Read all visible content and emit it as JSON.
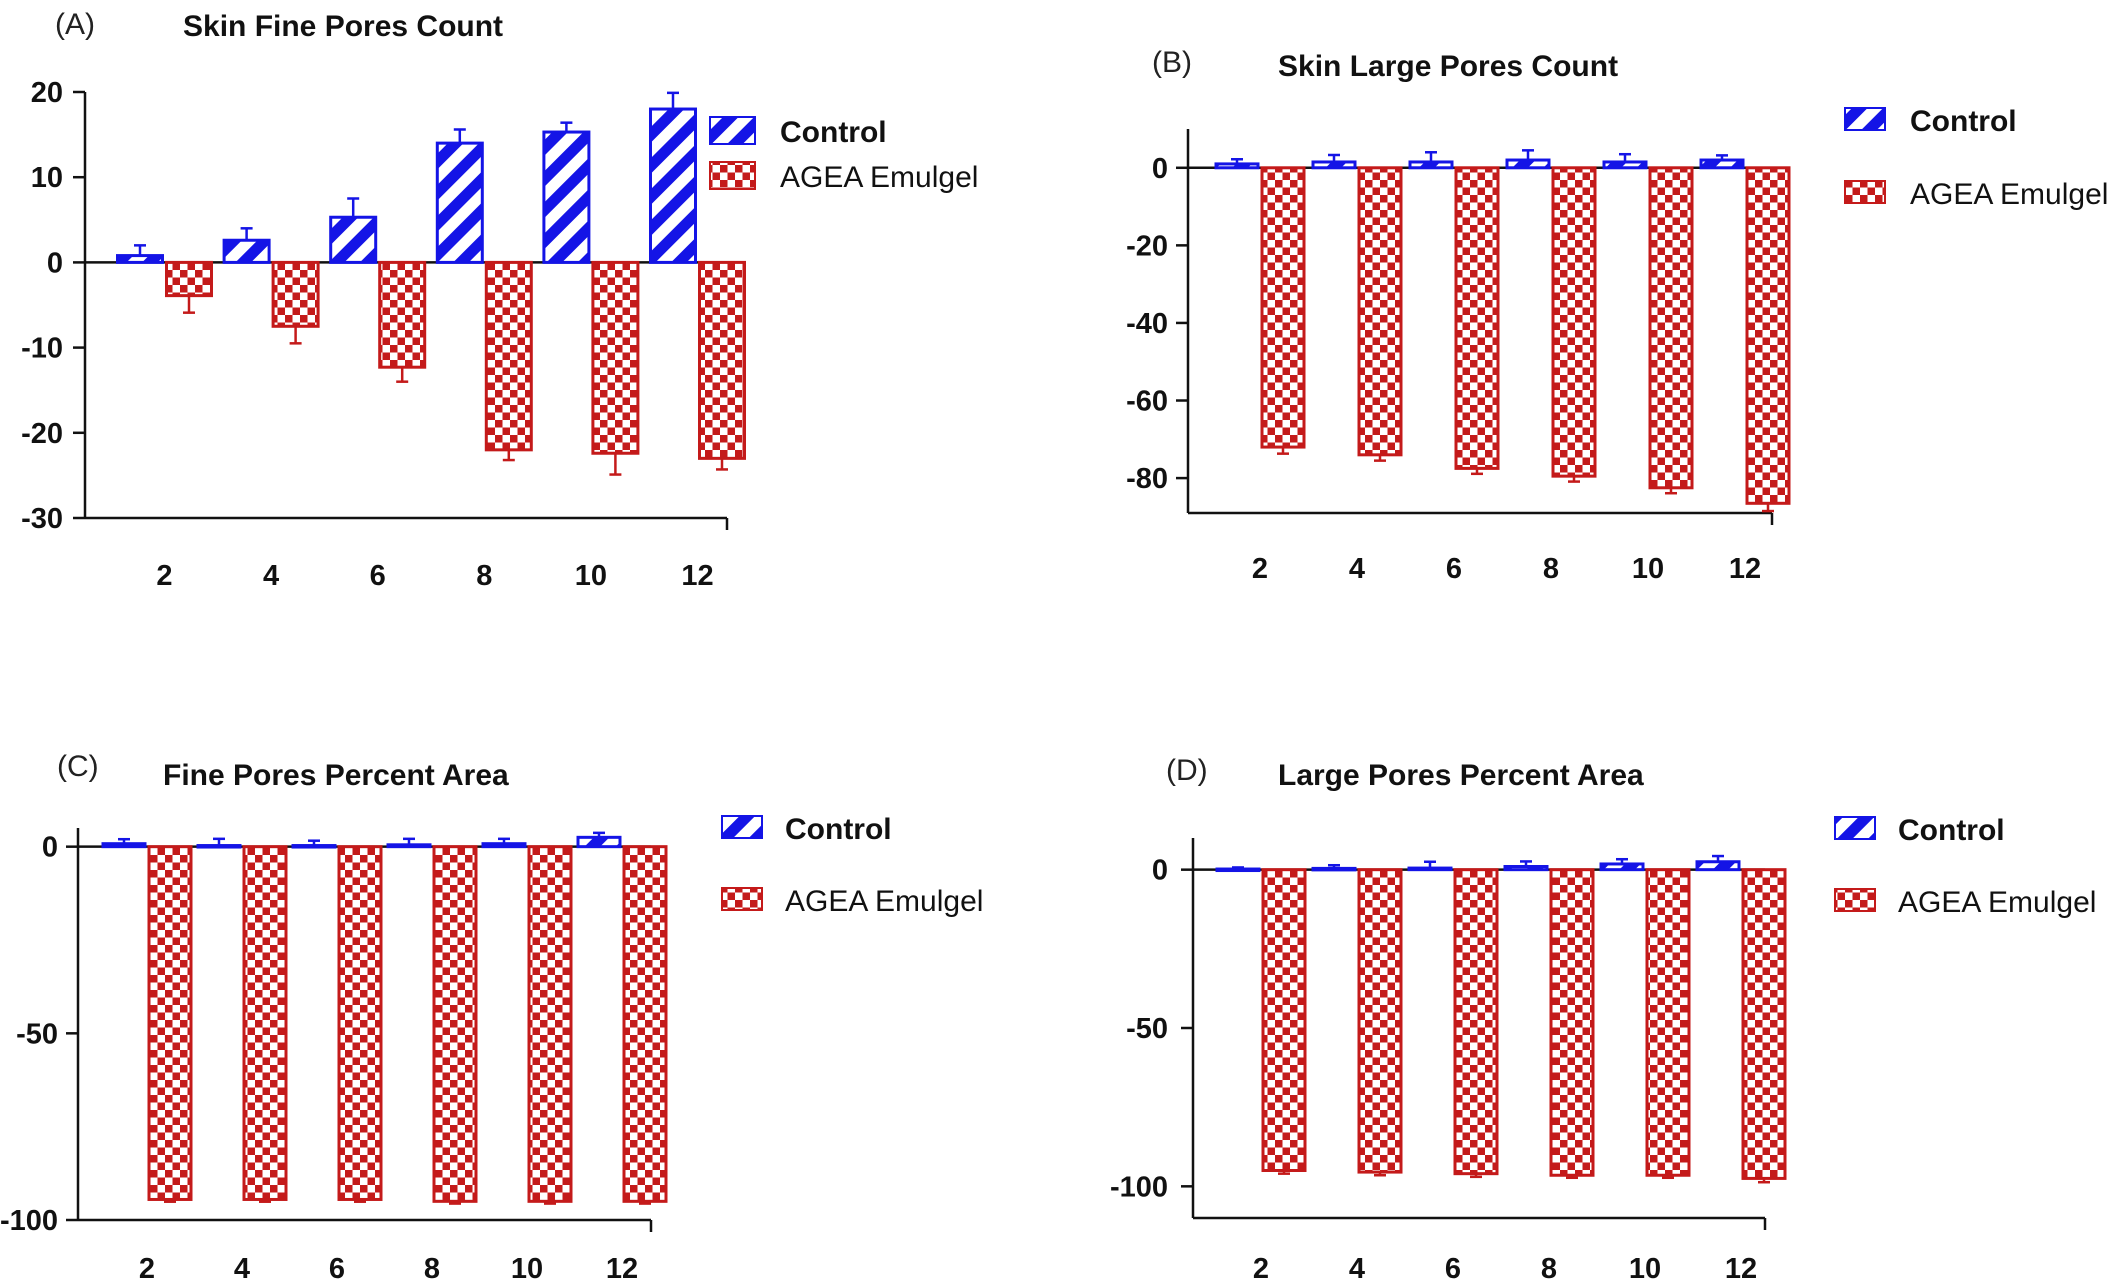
{
  "colors": {
    "control": "#1414e6",
    "agea": "#c41a1a",
    "axis": "#111111"
  },
  "legend": {
    "control": "Control",
    "agea": "AGEA Emulgel"
  },
  "chart_data": [
    {
      "panel_label": "(A)",
      "type": "bar",
      "title": "Skin Fine Pores Count",
      "xlabel": "",
      "ylabel": "",
      "categories": [
        "2",
        "4",
        "6",
        "8",
        "10",
        "12"
      ],
      "ylim": [
        -30,
        20
      ],
      "yticks": [
        20,
        10,
        0,
        -10,
        -20,
        -30
      ],
      "ytick_labels": [
        "20",
        "10",
        "0",
        "-10",
        "-20",
        "-30"
      ],
      "grid": false,
      "legend_position": "top-right",
      "series": [
        {
          "name": "Control",
          "values": [
            0.8,
            2.6,
            5.3,
            14,
            15.3,
            18
          ],
          "errors": [
            1.2,
            1.4,
            2.2,
            1.6,
            1.1,
            1.9
          ]
        },
        {
          "name": "AGEA Emulgel",
          "values": [
            -3.9,
            -7.5,
            -12.3,
            -22,
            -22.4,
            -23
          ],
          "errors": [
            2,
            2,
            1.7,
            1.2,
            2.5,
            1.3
          ]
        }
      ]
    },
    {
      "panel_label": "(B)",
      "type": "bar",
      "title": "Skin Large Pores Count",
      "xlabel": "",
      "ylabel": "",
      "categories": [
        "2",
        "4",
        "6",
        "8",
        "10",
        "12"
      ],
      "ylim": [
        -89,
        10
      ],
      "yticks": [
        0,
        -20,
        -40,
        -60,
        -80
      ],
      "ytick_labels": [
        "0",
        "-20",
        "-40",
        "-60",
        "-80"
      ],
      "grid": false,
      "legend_position": "top-right",
      "series": [
        {
          "name": "Control",
          "values": [
            1,
            1.5,
            1.5,
            2,
            1.5,
            2
          ],
          "errors": [
            1.2,
            1.8,
            2.5,
            2.5,
            2,
            1.2
          ]
        },
        {
          "name": "AGEA Emulgel",
          "values": [
            -72,
            -74,
            -77.5,
            -79.5,
            -82.5,
            -86.5
          ],
          "errors": [
            1.7,
            1.5,
            1.4,
            1.4,
            1.4,
            2
          ]
        }
      ]
    },
    {
      "panel_label": "(C)",
      "type": "bar",
      "title": "Fine Pores Percent Area",
      "xlabel": "",
      "ylabel": "",
      "categories": [
        "2",
        "4",
        "6",
        "8",
        "10",
        "12"
      ],
      "ylim": [
        -100,
        5
      ],
      "yticks": [
        0,
        -50,
        -100
      ],
      "ytick_labels": [
        "0",
        "-50",
        "-100"
      ],
      "grid": false,
      "legend_position": "top-right",
      "series": [
        {
          "name": "Control",
          "values": [
            0.8,
            0.3,
            0.3,
            0.5,
            0.8,
            2.5
          ],
          "errors": [
            1.2,
            1.8,
            1.3,
            1.6,
            1.3,
            1.2
          ]
        },
        {
          "name": "AGEA Emulgel",
          "values": [
            -94.5,
            -94.5,
            -94.5,
            -95,
            -95,
            -95
          ],
          "errors": [
            0.6,
            0.6,
            0.6,
            0.6,
            0.6,
            0.6
          ]
        }
      ]
    },
    {
      "panel_label": "(D)",
      "type": "bar",
      "title": "Large Pores Percent Area",
      "xlabel": "",
      "ylabel": "",
      "categories": [
        "2",
        "4",
        "6",
        "8",
        "10",
        "12"
      ],
      "ylim": [
        -110,
        10
      ],
      "yticks": [
        0,
        -50,
        -100
      ],
      "ytick_labels": [
        "0",
        "-50",
        "-100"
      ],
      "grid": false,
      "legend_position": "top-right",
      "series": [
        {
          "name": "Control",
          "values": [
            0.2,
            0.4,
            0.5,
            1,
            1.8,
            2.5
          ],
          "errors": [
            0.5,
            1,
            2,
            1.6,
            1.5,
            1.8
          ]
        },
        {
          "name": "AGEA Emulgel",
          "values": [
            -95,
            -95.5,
            -96,
            -96.5,
            -96.5,
            -97.5
          ],
          "errors": [
            1,
            1,
            1,
            0.8,
            0.8,
            1.2
          ]
        }
      ]
    }
  ]
}
